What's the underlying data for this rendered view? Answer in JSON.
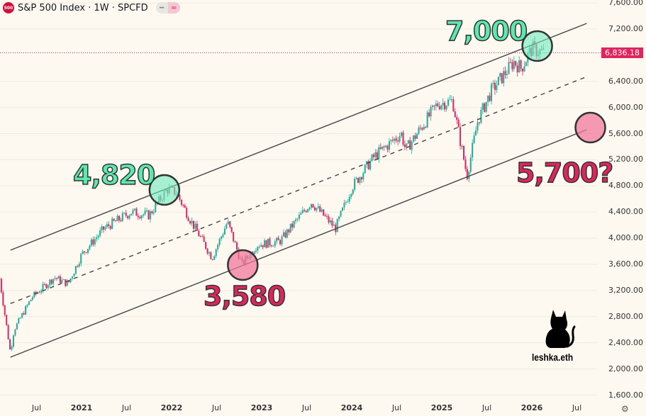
{
  "header": {
    "logo_text": "500",
    "title": "S&P 500 Index · 1W · SPCFD",
    "pill_icons": [
      "minus-icon",
      "approx-icon"
    ]
  },
  "price_tag": "6,836.18",
  "watermark": "leshka.eth",
  "settings_icon": "gear-icon",
  "colors": {
    "up": "#22ab94",
    "down": "#e0245e",
    "background": "#fdf9f1",
    "line": "#444444"
  },
  "chart_data": {
    "type": "candlestick",
    "title": "S&P 500 Index · 1W · SPCFD",
    "interval": "1W",
    "last_price": 6836.18,
    "ylim": [
      1600,
      7600
    ],
    "yticks": [
      7600,
      7200,
      6400,
      6000,
      5600,
      5200,
      4800,
      4400,
      4000,
      3600,
      3200,
      2800,
      2400,
      2000,
      1600
    ],
    "ytick_labels": [
      "7,600.00",
      "7,200.00",
      "6,400.00",
      "6,000.00",
      "5,600.00",
      "5,200.00",
      "4,800.00",
      "4,400.00",
      "4,000.00",
      "3,600.00",
      "3,200.00",
      "2,800.00",
      "2,400.00",
      "2,000.00",
      "1,600.00"
    ],
    "xticks": [
      {
        "t": 2020.5,
        "label": "Jul",
        "year": false
      },
      {
        "t": 2021,
        "label": "2021",
        "year": true
      },
      {
        "t": 2021.5,
        "label": "Jul",
        "year": false
      },
      {
        "t": 2022,
        "label": "2022",
        "year": true
      },
      {
        "t": 2022.5,
        "label": "Jul",
        "year": false
      },
      {
        "t": 2023,
        "label": "2023",
        "year": true
      },
      {
        "t": 2023.5,
        "label": "Jul",
        "year": false
      },
      {
        "t": 2024,
        "label": "2024",
        "year": true
      },
      {
        "t": 2024.5,
        "label": "Jul",
        "year": false
      },
      {
        "t": 2025,
        "label": "2025",
        "year": true
      },
      {
        "t": 2025.5,
        "label": "Jul",
        "year": false
      },
      {
        "t": 2026,
        "label": "2026",
        "year": true
      },
      {
        "t": 2026.5,
        "label": "Jul",
        "year": false
      }
    ],
    "price_path": [
      [
        2020.09,
        3380
      ],
      [
        2020.21,
        2250
      ],
      [
        2020.25,
        2600
      ],
      [
        2020.45,
        3100
      ],
      [
        2020.7,
        3400
      ],
      [
        2020.85,
        3300
      ],
      [
        2021.0,
        3750
      ],
      [
        2021.25,
        4150
      ],
      [
        2021.55,
        4400
      ],
      [
        2021.75,
        4350
      ],
      [
        2021.95,
        4750
      ],
      [
        2022.05,
        4700
      ],
      [
        2022.2,
        4300
      ],
      [
        2022.45,
        3700
      ],
      [
        2022.62,
        4250
      ],
      [
        2022.78,
        3600
      ],
      [
        2022.95,
        3900
      ],
      [
        2023.2,
        3950
      ],
      [
        2023.55,
        4550
      ],
      [
        2023.82,
        4150
      ],
      [
        2024.0,
        4780
      ],
      [
        2024.25,
        5250
      ],
      [
        2024.55,
        5600
      ],
      [
        2024.6,
        5350
      ],
      [
        2024.95,
        6050
      ],
      [
        2025.12,
        6100
      ],
      [
        2025.28,
        4950
      ],
      [
        2025.4,
        5800
      ],
      [
        2025.55,
        6250
      ],
      [
        2025.8,
        6700
      ],
      [
        2025.88,
        6600
      ],
      [
        2026.0,
        6900
      ],
      [
        2026.13,
        6836.18
      ]
    ],
    "channel": {
      "upper": [
        [
          2020.21,
          3817
        ],
        [
          2026.61,
          7286
        ]
      ],
      "middle": [
        [
          2020.21,
          3000
        ],
        [
          2026.61,
          6470
        ]
      ],
      "lower": [
        [
          2020.21,
          2180
        ],
        [
          2026.61,
          5660
        ]
      ]
    },
    "annotations": [
      {
        "label": "4,820",
        "t": 2021.92,
        "price": 4738,
        "color": "green"
      },
      {
        "label": "3,580",
        "t": 2022.79,
        "price": 3589,
        "color": "pink"
      },
      {
        "label": "7,000",
        "t": 2026.06,
        "price": 6939,
        "color": "green"
      },
      {
        "label": "5,700?",
        "t": 2026.65,
        "price": 5692,
        "color": "pink"
      }
    ]
  }
}
